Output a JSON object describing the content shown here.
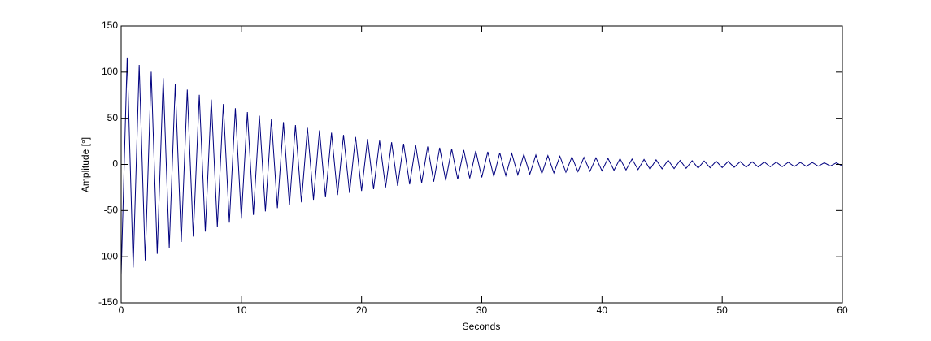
{
  "chart_data": {
    "type": "line",
    "xlabel": "Seconds",
    "ylabel": "Amplitude [°]",
    "color": "#00007f",
    "xlim": [
      0,
      60
    ],
    "xticks": [
      0,
      10,
      20,
      30,
      40,
      50,
      60
    ],
    "ylim": [
      -150,
      150
    ],
    "yticks": [
      -150,
      -100,
      -50,
      0,
      50,
      100,
      150
    ],
    "grid": false,
    "x": [
      0,
      0.5,
      1,
      1.5,
      2,
      2.5,
      3,
      3.5,
      4,
      4.5,
      5,
      5.5,
      6,
      6.5,
      7,
      7.5,
      8,
      8.5,
      9,
      9.5,
      10,
      10.5,
      11,
      11.5,
      12,
      12.5,
      13,
      13.5,
      14,
      14.5,
      15,
      15.5,
      16,
      16.5,
      17,
      17.5,
      18,
      18.5,
      19,
      19.5,
      20,
      20.5,
      21,
      21.5,
      22,
      22.5,
      23,
      23.5,
      24,
      24.5,
      25,
      25.5,
      26,
      26.5,
      27,
      27.5,
      28,
      28.5,
      29,
      29.5,
      30,
      30.5,
      31,
      31.5,
      32,
      32.5,
      33,
      33.5,
      34,
      34.5,
      35,
      35.5,
      36,
      36.5,
      37,
      37.5,
      38,
      38.5,
      39,
      39.5,
      40,
      40.5,
      41,
      41.5,
      42,
      42.5,
      43,
      43.5,
      44,
      44.5,
      45,
      45.5,
      46,
      46.5,
      47,
      47.5,
      48,
      48.5,
      49,
      49.5,
      50,
      50.5,
      51,
      51.5,
      52,
      52.5,
      53,
      53.5,
      54,
      54.5,
      55,
      55.5,
      56,
      56.5,
      57,
      57.5,
      58,
      58.5,
      59,
      59.5,
      60
    ],
    "values": [
      -120,
      115.8,
      -111.7,
      107.8,
      -104.0,
      100.4,
      -96.9,
      93.5,
      -90.2,
      87.0,
      -84.0,
      81.0,
      -78.2,
      75.4,
      -72.8,
      70.2,
      -67.8,
      65.4,
      -63.1,
      60.9,
      -58.8,
      56.7,
      -54.7,
      52.8,
      -50.9,
      49.1,
      -47.4,
      45.8,
      -44.1,
      42.6,
      -41.1,
      39.7,
      -38.3,
      36.9,
      -35.6,
      34.4,
      -33.2,
      32.0,
      -30.9,
      29.8,
      -28.8,
      27.7,
      -26.8,
      25.8,
      -24.9,
      24.0,
      -23.2,
      22.4,
      -21.6,
      20.8,
      -20.1,
      19.4,
      -18.7,
      18.1,
      -17.4,
      16.8,
      -16.2,
      15.6,
      -15.1,
      14.6,
      -14.1,
      13.6,
      -13.1,
      12.6,
      -12.2,
      11.8,
      -11.3,
      10.9,
      -10.6,
      10.2,
      -9.9,
      9.5,
      -9.2,
      8.8,
      -8.5,
      8.2,
      -7.9,
      7.7,
      -7.4,
      7.1,
      -6.9,
      6.6,
      -6.4,
      6.2,
      -6.0,
      5.8,
      -5.6,
      5.4,
      -5.2,
      5.0,
      -4.8,
      4.6,
      -4.5,
      4.3,
      -4.2,
      4.0,
      -3.9,
      3.7,
      -3.6,
      3.5,
      -3.4,
      3.2,
      -3.1,
      3.0,
      -2.9,
      2.8,
      -2.7,
      2.6,
      -2.5,
      2.4,
      -2.4,
      2.3,
      -2.2,
      2.1,
      -2.0,
      2.0,
      -1.9,
      1.8,
      -1.7,
      1.7,
      -1.7
    ]
  }
}
